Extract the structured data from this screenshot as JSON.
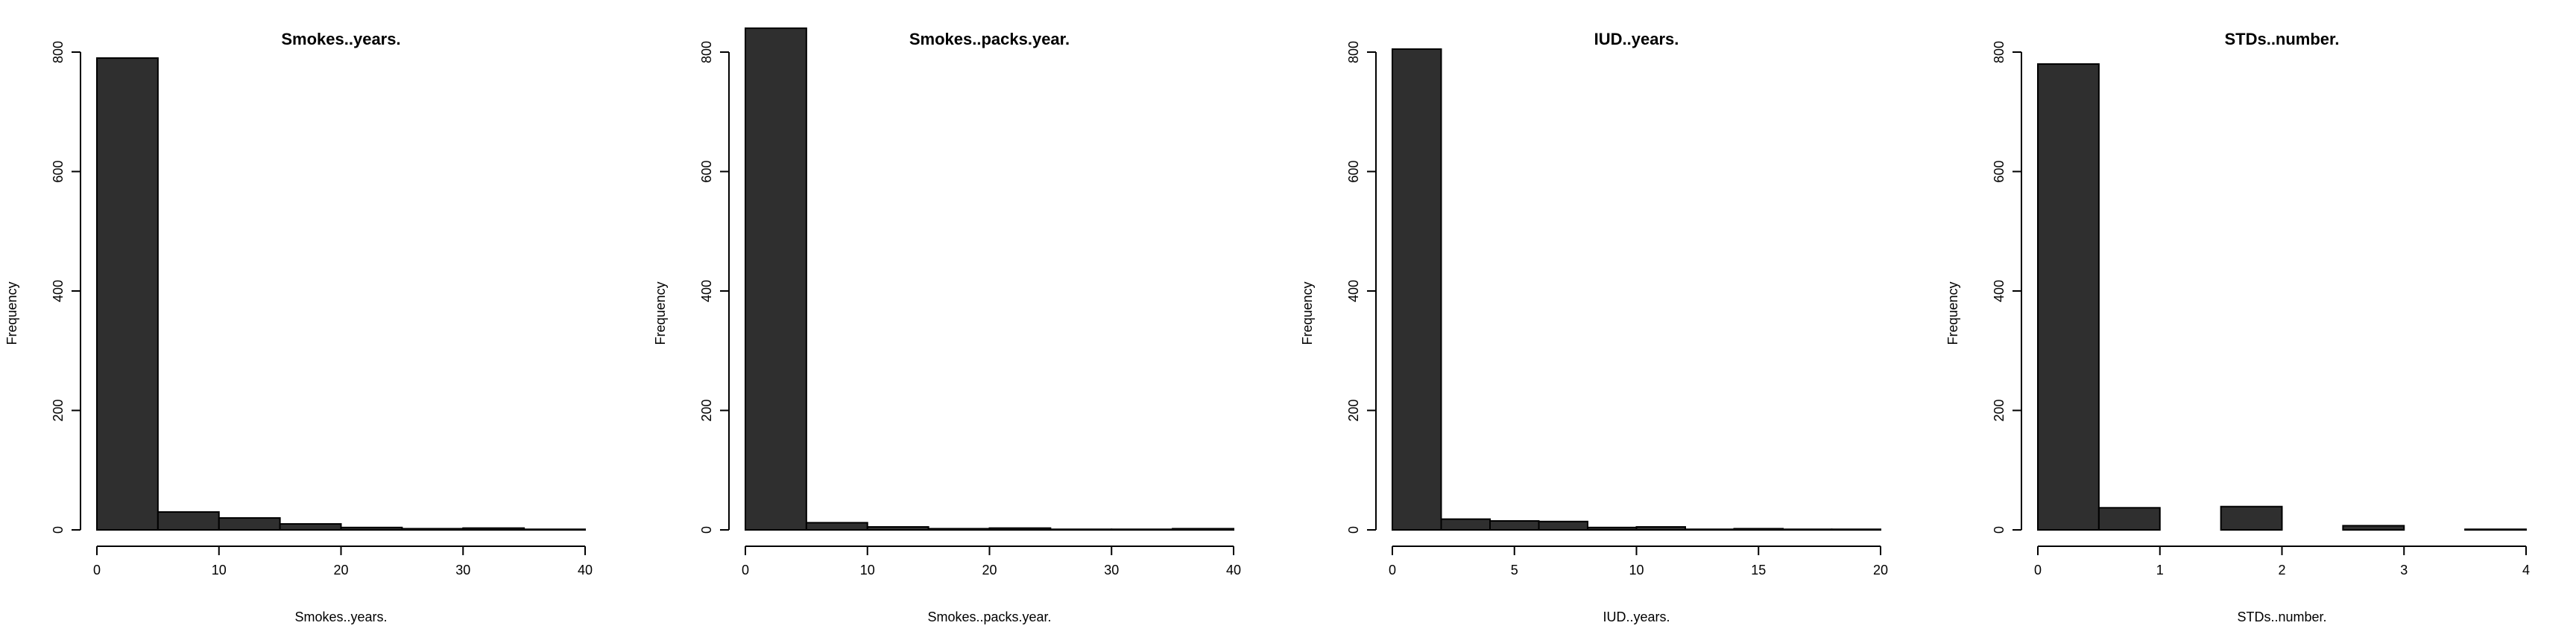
{
  "colors": {
    "bar_fill": "#2f2f2f",
    "bar_stroke": "#000000",
    "background": "#ffffff"
  },
  "chart_data": [
    {
      "type": "bar",
      "title": "Smokes..years.",
      "xlabel": "Smokes..years.",
      "ylabel": "Frequency",
      "xlim": [
        0,
        40
      ],
      "ylim": [
        0,
        800
      ],
      "grid": false,
      "bin_edges": [
        0,
        5,
        10,
        15,
        20,
        25,
        30,
        35,
        40
      ],
      "values": [
        790,
        30,
        20,
        10,
        4,
        2,
        3,
        1
      ],
      "x_ticks": [
        "0",
        "10",
        "20",
        "30",
        "40"
      ],
      "y_ticks": [
        "0",
        "200",
        "400",
        "600",
        "800"
      ]
    },
    {
      "type": "bar",
      "title": "Smokes..packs.year.",
      "xlabel": "Smokes..packs.year.",
      "ylabel": "Frequency",
      "xlim": [
        0,
        40
      ],
      "ylim": [
        0,
        800
      ],
      "grid": false,
      "bin_edges": [
        0,
        5,
        10,
        15,
        20,
        25,
        30,
        35,
        40
      ],
      "values": [
        840,
        12,
        5,
        2,
        3,
        1,
        1,
        2
      ],
      "x_ticks": [
        "0",
        "10",
        "20",
        "30",
        "40"
      ],
      "y_ticks": [
        "0",
        "200",
        "400",
        "600",
        "800"
      ]
    },
    {
      "type": "bar",
      "title": "IUD..years.",
      "xlabel": "IUD..years.",
      "ylabel": "Frequency",
      "xlim": [
        0,
        20
      ],
      "ylim": [
        0,
        800
      ],
      "grid": false,
      "bin_edges": [
        0,
        2,
        4,
        6,
        8,
        10,
        12,
        14,
        16,
        18,
        20
      ],
      "values": [
        805,
        18,
        15,
        14,
        4,
        5,
        1,
        2,
        1,
        1
      ],
      "x_ticks": [
        "0",
        "5",
        "10",
        "15",
        "20"
      ],
      "y_ticks": [
        "0",
        "200",
        "400",
        "600",
        "800"
      ]
    },
    {
      "type": "bar",
      "title": "STDs..number.",
      "xlabel": "STDs..number.",
      "ylabel": "Frequency",
      "xlim": [
        0,
        4
      ],
      "ylim": [
        0,
        800
      ],
      "grid": false,
      "bin_edges": [
        0,
        0.5,
        1,
        1.5,
        2,
        2.5,
        3,
        3.5,
        4
      ],
      "values": [
        780,
        37,
        0,
        39,
        0,
        7,
        0,
        1
      ],
      "x_ticks": [
        "0",
        "1",
        "2",
        "3",
        "4"
      ],
      "y_ticks": [
        "0",
        "200",
        "400",
        "600",
        "800"
      ]
    }
  ]
}
